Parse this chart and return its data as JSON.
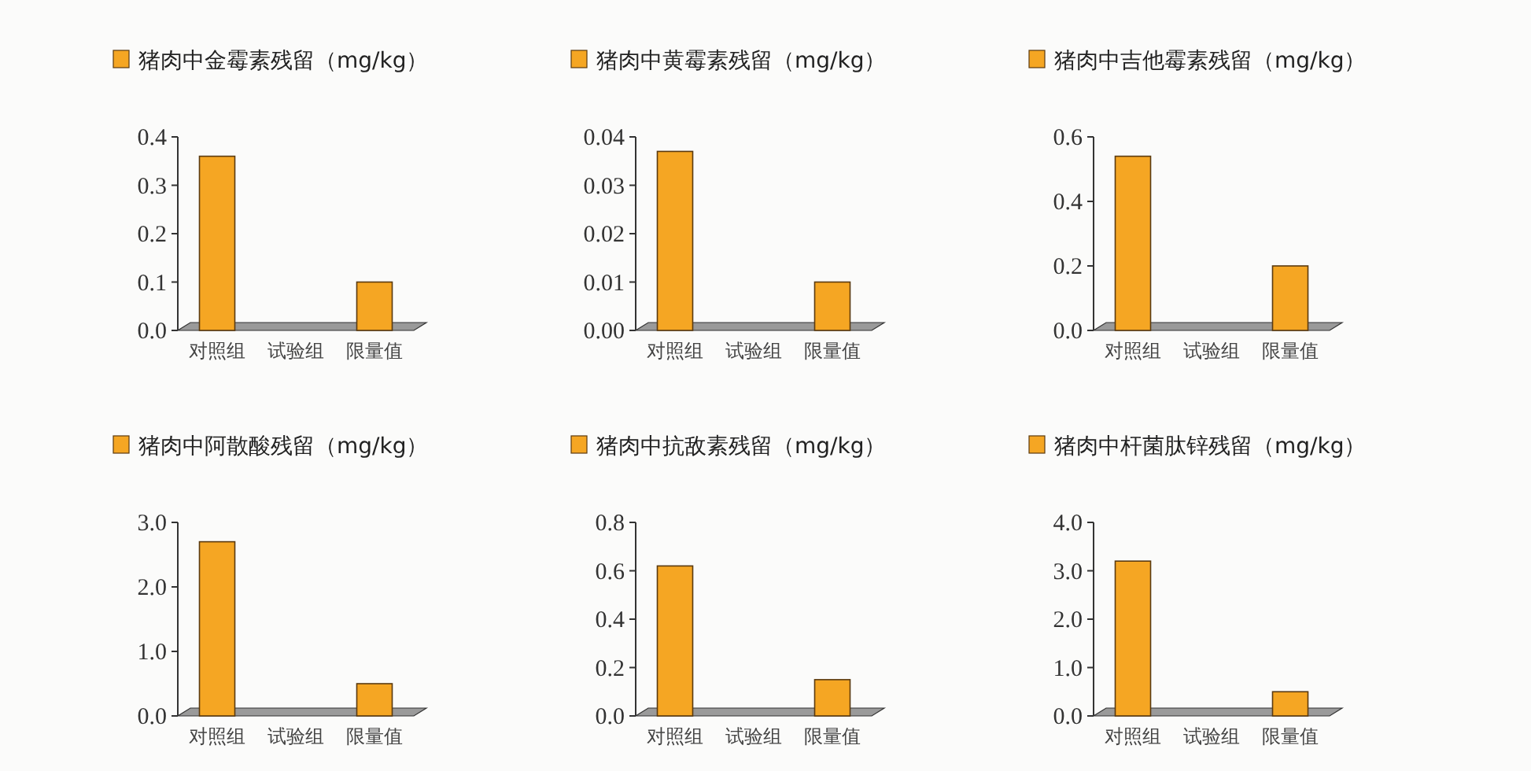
{
  "chart_data": [
    {
      "type": "bar",
      "categories": [
        "对照组",
        "试验组",
        "限量值"
      ],
      "series": [
        {
          "name": "猪肉中金霉素残留（mg/kg）",
          "color": "#f5a623",
          "values": [
            0.36,
            0,
            0.1
          ]
        }
      ],
      "ylim": [
        0,
        0.4
      ],
      "yticks": [
        {
          "value": 0,
          "label": "0.0"
        },
        0.1,
        0.2,
        0.3,
        0.4
      ],
      "legend": "top"
    },
    {
      "type": "bar",
      "categories": [
        "对照组",
        "试验组",
        "限量值"
      ],
      "series": [
        {
          "name": "猪肉中黄霉素残留（mg/kg）",
          "color": "#f5a623",
          "values": [
            0.037,
            0,
            0.01
          ]
        }
      ],
      "ylim": [
        0,
        0.04
      ],
      "yticks": [
        {
          "value": 0,
          "label": "0.00"
        },
        0.01,
        0.02,
        0.03,
        0.04
      ],
      "legend": "top"
    },
    {
      "type": "bar",
      "categories": [
        "对照组",
        "试验组",
        "限量值"
      ],
      "series": [
        {
          "name": "猪肉中吉他霉素残留（mg/kg）",
          "color": "#f5a623",
          "values": [
            0.54,
            0,
            0.2
          ]
        }
      ],
      "ylim": [
        0,
        0.6
      ],
      "yticks": [
        {
          "value": 0,
          "label": "0.0"
        },
        0.2,
        0.4,
        0.6
      ],
      "legend": "top"
    },
    {
      "type": "bar",
      "categories": [
        "对照组",
        "试验组",
        "限量值"
      ],
      "series": [
        {
          "name": "猪肉中阿散酸残留（mg/kg）",
          "color": "#f5a623",
          "values": [
            2.7,
            0,
            0.5
          ]
        }
      ],
      "ylim": [
        0,
        3
      ],
      "yticks": [
        {
          "value": 0,
          "label": "0.0"
        },
        {
          "value": 1,
          "label": "1.0"
        },
        {
          "value": 2,
          "label": "2.0"
        },
        {
          "value": 3,
          "label": "3.0"
        }
      ],
      "legend": "top"
    },
    {
      "type": "bar",
      "categories": [
        "对照组",
        "试验组",
        "限量值"
      ],
      "series": [
        {
          "name": "猪肉中抗敌素残留（mg/kg）",
          "color": "#f5a623",
          "values": [
            0.62,
            0,
            0.15
          ]
        }
      ],
      "ylim": [
        0,
        0.8
      ],
      "yticks": [
        {
          "value": 0,
          "label": "0.0"
        },
        0.2,
        0.4,
        0.6,
        0.8
      ],
      "legend": "top"
    },
    {
      "type": "bar",
      "categories": [
        "对照组",
        "试验组",
        "限量值"
      ],
      "series": [
        {
          "name": "猪肉中杆菌肽锌残留（mg/kg）",
          "color": "#f5a623",
          "values": [
            3.2,
            0,
            0.5
          ]
        }
      ],
      "ylim": [
        0,
        4
      ],
      "yticks": [
        {
          "value": 0,
          "label": "0.0"
        },
        {
          "value": 1,
          "label": "1.0"
        },
        {
          "value": 2,
          "label": "2.0"
        },
        {
          "value": 3,
          "label": "3.0"
        },
        {
          "value": 4,
          "label": "4.0"
        }
      ],
      "legend": "top"
    }
  ]
}
